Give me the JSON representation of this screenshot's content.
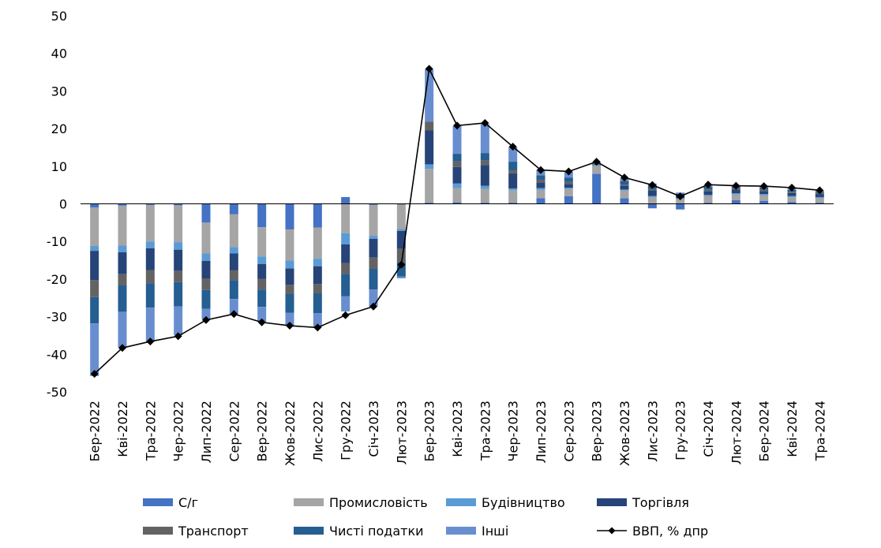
{
  "chart_data": {
    "type": "bar",
    "stacked": true,
    "categories": [
      "Бер-2022",
      "Кві-2022",
      "Тра-2022",
      "Чер-2022",
      "Лип-2022",
      "Сер-2022",
      "Вер-2022",
      "Жов-2022",
      "Лис-2022",
      "Гру-2022",
      "Січ-2023",
      "Лют-2023",
      "Бер-2023",
      "Кві-2023",
      "Тра-2023",
      "Чер-2023",
      "Лип-2023",
      "Сер-2023",
      "Вер-2023",
      "Жов-2023",
      "Лис-2023",
      "Гру-2023",
      "Січ-2024",
      "Лют-2024",
      "Бер-2024",
      "Кві-2024",
      "Тра-2024"
    ],
    "ylim": [
      -50,
      50
    ],
    "yticks": [
      -50,
      -40,
      -30,
      -20,
      -10,
      0,
      10,
      20,
      30,
      40,
      50
    ],
    "grid": false,
    "legend_position": "bottom",
    "series": [
      {
        "name": "С/г",
        "color": "#4472C4",
        "values": [
          -1.0,
          -0.5,
          -0.3,
          -0.4,
          -5.0,
          -2.8,
          -6.2,
          -6.8,
          -6.3,
          1.8,
          -0.3,
          -0.2,
          0.3,
          0.4,
          0.3,
          0.3,
          1.5,
          2.0,
          8.0,
          1.5,
          -1.2,
          -1.5,
          0.3,
          1.0,
          0.8,
          0.5,
          0.3
        ]
      },
      {
        "name": "Промисловість",
        "color": "#A5A5A5",
        "values": [
          -10.2,
          -10.6,
          -9.7,
          -9.8,
          -8.2,
          -8.7,
          -7.8,
          -8.3,
          -8.3,
          -7.8,
          -8.2,
          -6.5,
          9.0,
          3.8,
          3.7,
          3.3,
          2.2,
          2.0,
          2.0,
          2.0,
          1.8,
          1.2,
          1.8,
          1.5,
          1.5,
          1.3,
          1.2
        ]
      },
      {
        "name": "Будівництво",
        "color": "#5B9BD5",
        "values": [
          -1.3,
          -1.8,
          -1.8,
          -2.0,
          -2.0,
          -1.7,
          -2.0,
          -2.1,
          -2.0,
          -3.0,
          -0.8,
          -0.5,
          1.2,
          1.2,
          0.8,
          0.5,
          0.5,
          0.3,
          0.3,
          0.3,
          0.3,
          0.3,
          0.3,
          0.3,
          0.3,
          0.3,
          0.3
        ]
      },
      {
        "name": "Торгівля",
        "color": "#264478",
        "values": [
          -7.8,
          -5.8,
          -5.8,
          -5.6,
          -4.7,
          -4.5,
          -4.0,
          -4.3,
          -4.7,
          -5.0,
          -5.0,
          -4.8,
          9.0,
          4.4,
          5.5,
          4.0,
          1.5,
          1.0,
          0.0,
          1.0,
          1.5,
          0.7,
          1.0,
          1.0,
          0.8,
          0.8,
          0.8
        ]
      },
      {
        "name": "Транспорт",
        "color": "#636363",
        "values": [
          -4.5,
          -3.0,
          -3.5,
          -3.0,
          -3.0,
          -2.6,
          -2.8,
          -2.5,
          -2.5,
          -2.8,
          -3.0,
          -3.5,
          2.3,
          1.5,
          1.2,
          0.8,
          0.7,
          0.5,
          0.3,
          0.3,
          0.3,
          0.2,
          0.4,
          0.4,
          0.4,
          0.3,
          0.3
        ]
      },
      {
        "name": "Чисті податки",
        "color": "#255E91",
        "values": [
          -7.0,
          -7.0,
          -6.5,
          -6.5,
          -5.0,
          -5.0,
          -4.6,
          -5.0,
          -5.3,
          -6.0,
          -5.5,
          -3.8,
          0.0,
          2.0,
          2.0,
          2.3,
          1.2,
          1.2,
          0.0,
          1.0,
          1.0,
          0.3,
          0.7,
          0.5,
          0.5,
          0.5,
          0.3
        ]
      },
      {
        "name": "Інші",
        "color": "#698ED0",
        "values": [
          -14.0,
          -9.5,
          -9.0,
          -7.6,
          -2.8,
          -4.0,
          -4.0,
          -3.5,
          -3.7,
          -4.0,
          -4.5,
          -0.5,
          14.0,
          7.4,
          7.7,
          3.9,
          1.5,
          1.5,
          0.5,
          0.7,
          0.5,
          0.3,
          0.4,
          0.3,
          0.4,
          0.4,
          0.3
        ]
      }
    ],
    "line_series": {
      "name": "ВВП, % дпр",
      "color": "#000000",
      "values": [
        -45.2,
        -38.3,
        -36.6,
        -35.2,
        -30.9,
        -29.3,
        -31.5,
        -32.4,
        -32.9,
        -29.6,
        -27.3,
        -16.2,
        35.9,
        20.8,
        21.5,
        15.2,
        9.0,
        8.6,
        11.2,
        7.0,
        5.0,
        2.0,
        5.1,
        4.8,
        4.7,
        4.3,
        3.6
      ]
    }
  }
}
